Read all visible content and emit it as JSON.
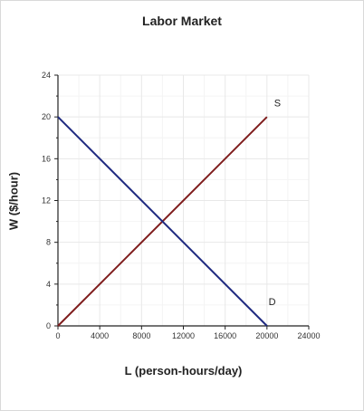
{
  "chart_data": {
    "type": "line",
    "title": "Labor Market",
    "xlabel": "L (person-hours/day)",
    "ylabel": "W ($/hour)",
    "xlim": [
      0,
      24000
    ],
    "ylim": [
      0,
      24
    ],
    "x_ticks": [
      0,
      4000,
      8000,
      12000,
      16000,
      20000,
      24000
    ],
    "y_ticks": [
      0,
      4,
      8,
      12,
      16,
      20,
      24
    ],
    "x_tick_labels": [
      "0",
      "4000",
      "8000",
      "12000",
      "16000",
      "20000",
      "24000"
    ],
    "y_tick_labels": [
      "0",
      "4",
      "8",
      "12",
      "16",
      "20",
      "24"
    ],
    "grid": true,
    "series": [
      {
        "name": "S",
        "color": "#7f1d1d",
        "points": [
          [
            0,
            0
          ],
          [
            20000,
            20
          ]
        ],
        "label_anchor": [
          21000,
          21
        ]
      },
      {
        "name": "D",
        "color": "#1f2a80",
        "points": [
          [
            0,
            20
          ],
          [
            20000,
            0
          ]
        ],
        "label_anchor": [
          20500,
          2
        ]
      }
    ]
  }
}
